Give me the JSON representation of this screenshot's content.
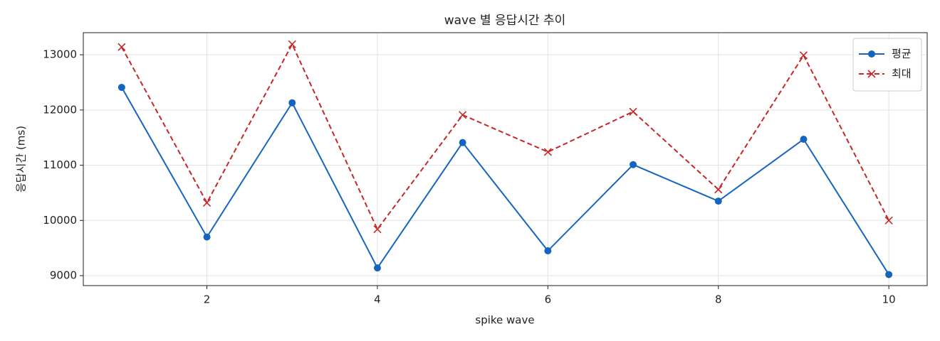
{
  "chart_data": {
    "type": "line",
    "title": "wave 별 응답시간 추이",
    "xlabel": "spike wave",
    "ylabel": "응답시간 (ms)",
    "x": [
      1,
      2,
      3,
      4,
      5,
      6,
      7,
      8,
      9,
      10
    ],
    "series": [
      {
        "name": "평균",
        "color": "#1565c0",
        "marker": "o",
        "linestyle": "solid",
        "values": [
          12410,
          9700,
          12130,
          9140,
          11410,
          9450,
          11010,
          10350,
          11470,
          9020
        ]
      },
      {
        "name": "최대",
        "color": "#c62828",
        "marker": "x",
        "linestyle": "dashed",
        "values": [
          13140,
          10320,
          13190,
          9840,
          11910,
          11240,
          11970,
          10560,
          12990,
          10000
        ]
      }
    ],
    "xlim": [
      0.55,
      10.45
    ],
    "xticks": [
      2,
      4,
      6,
      8,
      10
    ],
    "ylim": [
      8820,
      13400
    ],
    "yticks": [
      9000,
      10000,
      11000,
      12000,
      13000
    ],
    "grid": true,
    "legend": "upper right"
  }
}
